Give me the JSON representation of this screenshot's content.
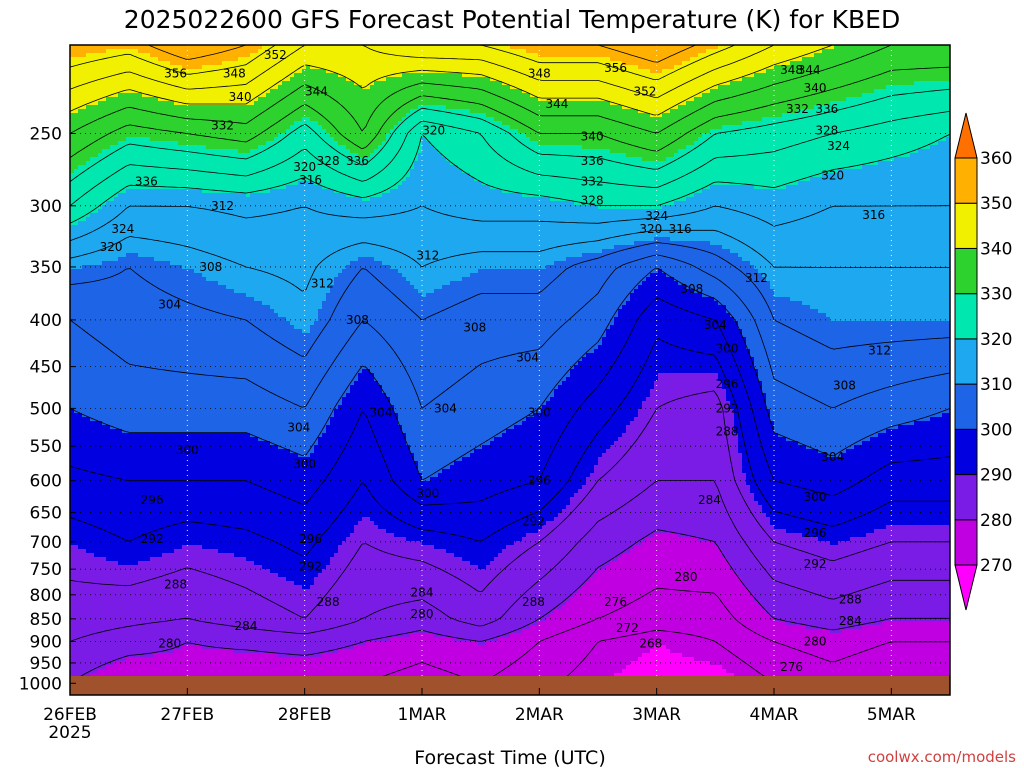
{
  "chart_data": {
    "type": "contour",
    "title": "2025022600 GFS Forecast Potential Temperature (K) for KBED",
    "xlabel": "Forecast Time (UTC)",
    "ylabel": "",
    "credit": "coolwx.com/models",
    "credit_color": "#d04040",
    "x_ticks": [
      {
        "label": "26FEB",
        "sublabel": "2025",
        "day": 0
      },
      {
        "label": "27FEB",
        "sublabel": "",
        "day": 1
      },
      {
        "label": "28FEB",
        "sublabel": "",
        "day": 2
      },
      {
        "label": "1MAR",
        "sublabel": "",
        "day": 3
      },
      {
        "label": "2MAR",
        "sublabel": "",
        "day": 4
      },
      {
        "label": "3MAR",
        "sublabel": "",
        "day": 5
      },
      {
        "label": "4MAR",
        "sublabel": "",
        "day": 6
      },
      {
        "label": "5MAR",
        "sublabel": "",
        "day": 7
      }
    ],
    "xlim_days": [
      0,
      7.5
    ],
    "y_axis": "pressure (hPa), log scale, decreasing upward",
    "y_ticks": [
      250,
      300,
      350,
      400,
      450,
      500,
      550,
      600,
      650,
      700,
      750,
      800,
      850,
      900,
      950,
      1000
    ],
    "ylim": [
      1030,
      200
    ],
    "ground_color": "#a0522d",
    "colorbar": {
      "levels": [
        270,
        280,
        290,
        300,
        310,
        320,
        330,
        340,
        350,
        360
      ],
      "colors": [
        "#ff00ff",
        "#c000e0",
        "#7a1ce6",
        "#0000e0",
        "#1e64e6",
        "#1ea8f0",
        "#00e8b0",
        "#2ed22e",
        "#f0f000",
        "#ffb000",
        "#ff7000"
      ],
      "extend": "both"
    },
    "theta_profiles": [
      {
        "day": 0.0,
        "points": [
          [
            1000,
            280
          ],
          [
            900,
            284
          ],
          [
            850,
            286
          ],
          [
            700,
            290
          ],
          [
            600,
            295
          ],
          [
            500,
            300
          ],
          [
            400,
            304
          ],
          [
            350,
            310
          ],
          [
            300,
            324
          ],
          [
            250,
            336
          ],
          [
            200,
            352
          ]
        ]
      },
      {
        "day": 0.5,
        "points": [
          [
            1000,
            276
          ],
          [
            900,
            282
          ],
          [
            850,
            285
          ],
          [
            700,
            292
          ],
          [
            600,
            296
          ],
          [
            500,
            302
          ],
          [
            400,
            306
          ],
          [
            350,
            308
          ],
          [
            300,
            316
          ],
          [
            250,
            330
          ],
          [
            200,
            350
          ]
        ]
      },
      {
        "day": 1.0,
        "points": [
          [
            1000,
            278
          ],
          [
            900,
            280
          ],
          [
            850,
            284
          ],
          [
            700,
            290
          ],
          [
            600,
            296
          ],
          [
            500,
            302
          ],
          [
            400,
            307
          ],
          [
            350,
            310
          ],
          [
            300,
            316
          ],
          [
            250,
            332
          ],
          [
            200,
            356
          ]
        ]
      },
      {
        "day": 1.5,
        "points": [
          [
            1000,
            276
          ],
          [
            900,
            281
          ],
          [
            850,
            286
          ],
          [
            700,
            291
          ],
          [
            600,
            296
          ],
          [
            500,
            302
          ],
          [
            400,
            308
          ],
          [
            350,
            312
          ],
          [
            300,
            317
          ],
          [
            250,
            334
          ],
          [
            200,
            352
          ]
        ]
      },
      {
        "day": 2.0,
        "points": [
          [
            1000,
            276
          ],
          [
            900,
            282
          ],
          [
            850,
            288
          ],
          [
            700,
            293
          ],
          [
            600,
            298
          ],
          [
            500,
            304
          ],
          [
            400,
            311
          ],
          [
            350,
            313
          ],
          [
            300,
            316
          ],
          [
            250,
            326
          ],
          [
            200,
            344
          ]
        ]
      },
      {
        "day": 2.5,
        "points": [
          [
            1000,
            276
          ],
          [
            900,
            280
          ],
          [
            850,
            284
          ],
          [
            700,
            288
          ],
          [
            600,
            292
          ],
          [
            500,
            296
          ],
          [
            400,
            304
          ],
          [
            350,
            308
          ],
          [
            300,
            318
          ],
          [
            250,
            336
          ],
          [
            200,
            344
          ]
        ]
      },
      {
        "day": 3.0,
        "points": [
          [
            1000,
            274
          ],
          [
            900,
            278
          ],
          [
            850,
            282
          ],
          [
            700,
            290
          ],
          [
            600,
            300
          ],
          [
            500,
            304
          ],
          [
            400,
            308
          ],
          [
            350,
            312
          ],
          [
            300,
            316
          ],
          [
            250,
            320
          ],
          [
            200,
            348
          ]
        ]
      },
      {
        "day": 3.5,
        "points": [
          [
            1000,
            276
          ],
          [
            900,
            280
          ],
          [
            850,
            286
          ],
          [
            700,
            292
          ],
          [
            600,
            298
          ],
          [
            500,
            302
          ],
          [
            400,
            306
          ],
          [
            350,
            310
          ],
          [
            300,
            318
          ],
          [
            250,
            324
          ],
          [
            200,
            348
          ]
        ]
      },
      {
        "day": 4.0,
        "points": [
          [
            1000,
            273
          ],
          [
            900,
            276
          ],
          [
            850,
            280
          ],
          [
            700,
            288
          ],
          [
            600,
            296
          ],
          [
            500,
            300
          ],
          [
            400,
            306
          ],
          [
            350,
            310
          ],
          [
            300,
            318
          ],
          [
            250,
            332
          ],
          [
            200,
            352
          ]
        ]
      },
      {
        "day": 4.5,
        "points": [
          [
            1000,
            270
          ],
          [
            900,
            272
          ],
          [
            850,
            276
          ],
          [
            700,
            282
          ],
          [
            600,
            288
          ],
          [
            500,
            294
          ],
          [
            400,
            302
          ],
          [
            350,
            306
          ],
          [
            300,
            320
          ],
          [
            250,
            332
          ],
          [
            200,
            352
          ]
        ]
      },
      {
        "day": 5.0,
        "points": [
          [
            1000,
            268
          ],
          [
            900,
            270
          ],
          [
            850,
            274
          ],
          [
            700,
            279
          ],
          [
            600,
            284
          ],
          [
            500,
            288
          ],
          [
            400,
            293
          ],
          [
            350,
            300
          ],
          [
            300,
            320
          ],
          [
            250,
            336
          ],
          [
            200,
            356
          ]
        ]
      },
      {
        "day": 5.5,
        "points": [
          [
            1000,
            268
          ],
          [
            900,
            272
          ],
          [
            850,
            274
          ],
          [
            700,
            280
          ],
          [
            600,
            284
          ],
          [
            500,
            286
          ],
          [
            400,
            296
          ],
          [
            350,
            306
          ],
          [
            300,
            316
          ],
          [
            250,
            328
          ],
          [
            200,
            350
          ]
        ]
      },
      {
        "day": 6.0,
        "points": [
          [
            1000,
            272
          ],
          [
            900,
            276
          ],
          [
            850,
            280
          ],
          [
            700,
            288
          ],
          [
            600,
            296
          ],
          [
            500,
            302
          ],
          [
            400,
            308
          ],
          [
            350,
            312
          ],
          [
            300,
            318
          ],
          [
            250,
            326
          ],
          [
            200,
            344
          ]
        ]
      },
      {
        "day": 6.5,
        "points": [
          [
            1000,
            274
          ],
          [
            900,
            278
          ],
          [
            850,
            282
          ],
          [
            700,
            290
          ],
          [
            600,
            298
          ],
          [
            500,
            304
          ],
          [
            400,
            310
          ],
          [
            350,
            312
          ],
          [
            300,
            316
          ],
          [
            250,
            324
          ],
          [
            200,
            340
          ]
        ]
      },
      {
        "day": 7.0,
        "points": [
          [
            1000,
            272
          ],
          [
            900,
            276
          ],
          [
            850,
            280
          ],
          [
            700,
            288
          ],
          [
            600,
            294
          ],
          [
            500,
            302
          ],
          [
            400,
            310
          ],
          [
            350,
            312
          ],
          [
            300,
            316
          ],
          [
            250,
            322
          ],
          [
            200,
            336
          ]
        ]
      },
      {
        "day": 7.5,
        "points": [
          [
            1000,
            272
          ],
          [
            900,
            276
          ],
          [
            850,
            280
          ],
          [
            700,
            288
          ],
          [
            600,
            294
          ],
          [
            500,
            300
          ],
          [
            400,
            310
          ],
          [
            350,
            312
          ],
          [
            300,
            316
          ],
          [
            250,
            320
          ],
          [
            200,
            336
          ]
        ]
      }
    ],
    "contour_labels": [
      {
        "day": 1.75,
        "p": 205,
        "v": "352"
      },
      {
        "day": 1.4,
        "p": 215,
        "v": "348"
      },
      {
        "day": 0.9,
        "p": 215,
        "v": "356"
      },
      {
        "day": 1.45,
        "p": 228,
        "v": "340"
      },
      {
        "day": 2.1,
        "p": 225,
        "v": "344"
      },
      {
        "day": 1.3,
        "p": 245,
        "v": "332"
      },
      {
        "day": 2.0,
        "p": 272,
        "v": "320"
      },
      {
        "day": 2.05,
        "p": 281,
        "v": "316"
      },
      {
        "day": 2.2,
        "p": 268,
        "v": "328"
      },
      {
        "day": 2.45,
        "p": 268,
        "v": "336"
      },
      {
        "day": 0.65,
        "p": 282,
        "v": "336"
      },
      {
        "day": 1.3,
        "p": 300,
        "v": "312"
      },
      {
        "day": 0.45,
        "p": 318,
        "v": "324"
      },
      {
        "day": 0.35,
        "p": 333,
        "v": "320"
      },
      {
        "day": 1.2,
        "p": 350,
        "v": "308"
      },
      {
        "day": 2.15,
        "p": 365,
        "v": "312"
      },
      {
        "day": 0.85,
        "p": 385,
        "v": "304"
      },
      {
        "day": 2.45,
        "p": 400,
        "v": "308"
      },
      {
        "day": 3.1,
        "p": 248,
        "v": "320"
      },
      {
        "day": 3.05,
        "p": 340,
        "v": "312"
      },
      {
        "day": 3.45,
        "p": 408,
        "v": "308"
      },
      {
        "day": 3.9,
        "p": 440,
        "v": "304"
      },
      {
        "day": 2.65,
        "p": 505,
        "v": "304"
      },
      {
        "day": 3.2,
        "p": 500,
        "v": "304"
      },
      {
        "day": 1.95,
        "p": 525,
        "v": "304"
      },
      {
        "day": 1.0,
        "p": 555,
        "v": "300"
      },
      {
        "day": 2.0,
        "p": 575,
        "v": "300"
      },
      {
        "day": 3.05,
        "p": 620,
        "v": "300"
      },
      {
        "day": 4.0,
        "p": 505,
        "v": "300"
      },
      {
        "day": 4.0,
        "p": 600,
        "v": "296"
      },
      {
        "day": 3.95,
        "p": 665,
        "v": "292"
      },
      {
        "day": 0.7,
        "p": 630,
        "v": "296"
      },
      {
        "day": 0.7,
        "p": 695,
        "v": "292"
      },
      {
        "day": 2.05,
        "p": 695,
        "v": "296"
      },
      {
        "day": 2.05,
        "p": 745,
        "v": "292"
      },
      {
        "day": 0.9,
        "p": 780,
        "v": "288"
      },
      {
        "day": 2.2,
        "p": 815,
        "v": "288"
      },
      {
        "day": 3.95,
        "p": 815,
        "v": "288"
      },
      {
        "day": 3.0,
        "p": 795,
        "v": "284"
      },
      {
        "day": 3.0,
        "p": 840,
        "v": "280"
      },
      {
        "day": 1.5,
        "p": 865,
        "v": "284"
      },
      {
        "day": 0.85,
        "p": 905,
        "v": "280"
      },
      {
        "day": 2.5,
        "p": 1010,
        "v": "276"
      },
      {
        "day": 4.9,
        "p": 225,
        "v": "352"
      },
      {
        "day": 4.65,
        "p": 212,
        "v": "356"
      },
      {
        "day": 4.0,
        "p": 215,
        "v": "348"
      },
      {
        "day": 4.15,
        "p": 232,
        "v": "344"
      },
      {
        "day": 4.45,
        "p": 252,
        "v": "340"
      },
      {
        "day": 4.45,
        "p": 268,
        "v": "336"
      },
      {
        "day": 4.45,
        "p": 282,
        "v": "332"
      },
      {
        "day": 4.45,
        "p": 296,
        "v": "328"
      },
      {
        "day": 5.0,
        "p": 308,
        "v": "324"
      },
      {
        "day": 4.95,
        "p": 318,
        "v": "320"
      },
      {
        "day": 5.2,
        "p": 318,
        "v": "316"
      },
      {
        "day": 5.3,
        "p": 370,
        "v": "308"
      },
      {
        "day": 5.5,
        "p": 405,
        "v": "304"
      },
      {
        "day": 5.6,
        "p": 430,
        "v": "300"
      },
      {
        "day": 5.6,
        "p": 470,
        "v": "296"
      },
      {
        "day": 5.6,
        "p": 500,
        "v": "292"
      },
      {
        "day": 5.6,
        "p": 530,
        "v": "288"
      },
      {
        "day": 5.45,
        "p": 630,
        "v": "284"
      },
      {
        "day": 5.25,
        "p": 765,
        "v": "280"
      },
      {
        "day": 4.65,
        "p": 815,
        "v": "276"
      },
      {
        "day": 4.75,
        "p": 870,
        "v": "272"
      },
      {
        "day": 4.95,
        "p": 905,
        "v": "268"
      },
      {
        "day": 6.15,
        "p": 213,
        "v": "348"
      },
      {
        "day": 6.3,
        "p": 213,
        "v": "344"
      },
      {
        "day": 6.35,
        "p": 223,
        "v": "340"
      },
      {
        "day": 6.2,
        "p": 235,
        "v": "332"
      },
      {
        "day": 6.45,
        "p": 235,
        "v": "336"
      },
      {
        "day": 6.45,
        "p": 248,
        "v": "328"
      },
      {
        "day": 6.55,
        "p": 258,
        "v": "324"
      },
      {
        "day": 6.5,
        "p": 278,
        "v": "320"
      },
      {
        "day": 6.85,
        "p": 307,
        "v": "316"
      },
      {
        "day": 5.85,
        "p": 360,
        "v": "312"
      },
      {
        "day": 6.9,
        "p": 432,
        "v": "312"
      },
      {
        "day": 6.6,
        "p": 472,
        "v": "308"
      },
      {
        "day": 6.5,
        "p": 565,
        "v": "304"
      },
      {
        "day": 6.35,
        "p": 625,
        "v": "300"
      },
      {
        "day": 6.35,
        "p": 685,
        "v": "296"
      },
      {
        "day": 6.35,
        "p": 740,
        "v": "292"
      },
      {
        "day": 6.65,
        "p": 810,
        "v": "288"
      },
      {
        "day": 6.65,
        "p": 855,
        "v": "284"
      },
      {
        "day": 6.35,
        "p": 900,
        "v": "280"
      },
      {
        "day": 6.15,
        "p": 960,
        "v": "276"
      },
      {
        "day": 5.95,
        "p": 1015,
        "v": "272"
      }
    ]
  }
}
